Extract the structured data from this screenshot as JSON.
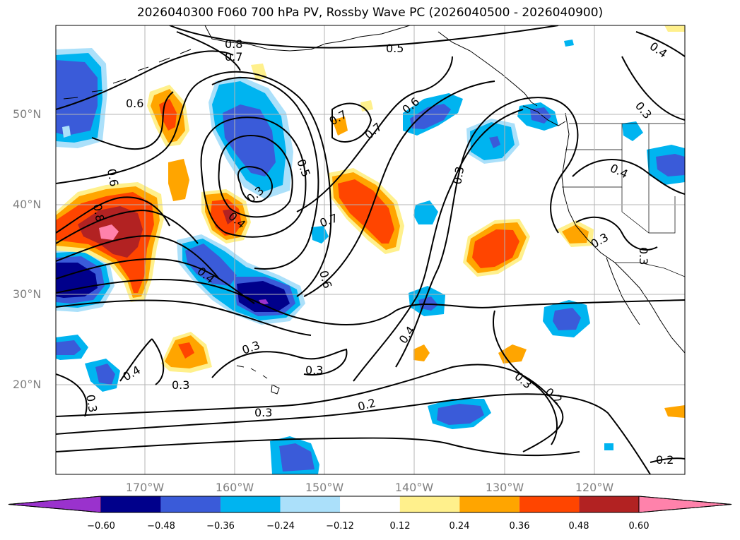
{
  "title": "2026040300 F060 700 hPa PV, Rossby Wave PC (2026040500 - 2026040900)",
  "lat_labels": [
    "50°N",
    "40°N",
    "30°N",
    "20°N"
  ],
  "lon_labels": [
    "170°W",
    "160°W",
    "150°W",
    "140°W",
    "130°W",
    "120°W"
  ],
  "contour_labels": [
    "0.8",
    "0.7",
    "0.5",
    "0.4",
    "0.6",
    "0.3",
    "0.7",
    "0.5",
    "0.3",
    "0.4",
    "0.7",
    "0.6",
    "0.3",
    "0.4",
    "0.3",
    "0.3",
    "0.4",
    "0.6",
    "0.4",
    "0.3",
    "0.3",
    "0.3",
    "0.4",
    "0.3",
    "0.3",
    "0.2",
    "0.3",
    "0.2",
    "0.2",
    "0.8",
    "0.6",
    "0.7"
  ],
  "colorbar": {
    "ticks": [
      "−0.60",
      "−0.48",
      "−0.36",
      "−0.24",
      "−0.12",
      "0.12",
      "0.24",
      "0.36",
      "0.48",
      "0.60"
    ],
    "colors": [
      "#9a32cd",
      "#00008b",
      "#3a5bd9",
      "#00b4f0",
      "#abe0fa",
      "#ffffff",
      "#fff08c",
      "#ffa500",
      "#ff4500",
      "#b22222",
      "#ff82ab"
    ]
  },
  "colors": {
    "very_neg": "#9a32cd",
    "neg5": "#00008b",
    "neg4": "#3a5bd9",
    "neg3": "#00b4f0",
    "neg2": "#abe0fa",
    "pos2": "#fff08c",
    "pos3": "#ffa500",
    "pos4": "#ff4500",
    "pos5": "#b22222",
    "pos6": "#ff82ab",
    "grid": "#b4b4b4",
    "axis_text": "#808080"
  }
}
